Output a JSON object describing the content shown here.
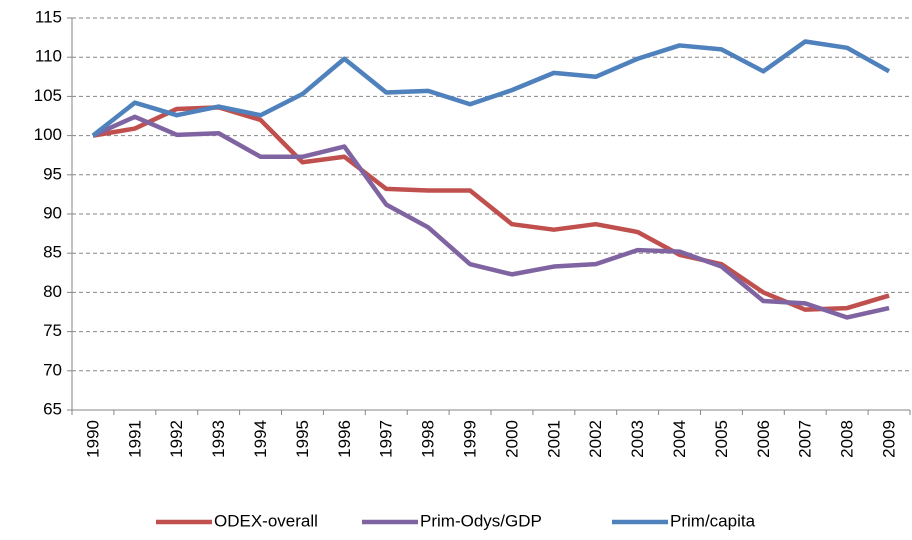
{
  "chart_data": {
    "type": "line",
    "categories": [
      "1990",
      "1991",
      "1992",
      "1993",
      "1994",
      "1995",
      "1996",
      "1997",
      "1998",
      "1999",
      "2000",
      "2001",
      "2002",
      "2003",
      "2004",
      "2005",
      "2006",
      "2007",
      "2008",
      "2009"
    ],
    "series": [
      {
        "name": "ODEX-overall",
        "color": "#c0504d",
        "values": [
          100,
          100.9,
          103.4,
          103.6,
          102.0,
          96.6,
          97.3,
          93.2,
          93.0,
          93.0,
          88.7,
          88.0,
          88.7,
          87.7,
          84.8,
          83.6,
          80.0,
          77.8,
          78.0,
          79.6
        ]
      },
      {
        "name": "Prim-Odys/GDP",
        "color": "#8064a2",
        "values": [
          100,
          102.4,
          100.1,
          100.3,
          97.3,
          97.3,
          98.6,
          91.2,
          88.3,
          83.6,
          82.3,
          83.3,
          83.6,
          85.4,
          85.2,
          83.3,
          78.9,
          78.6,
          76.8,
          78.0
        ]
      },
      {
        "name": "Prim/capita",
        "color": "#4f81bd",
        "values": [
          100,
          104.2,
          102.6,
          103.7,
          102.6,
          105.3,
          109.8,
          105.5,
          105.7,
          104.0,
          105.8,
          108.0,
          107.5,
          109.8,
          111.5,
          111.0,
          108.2,
          112.0,
          111.2,
          108.2
        ]
      }
    ],
    "ylim": [
      65,
      115
    ],
    "yticks": [
      65,
      70,
      75,
      80,
      85,
      90,
      95,
      100,
      105,
      110,
      115
    ],
    "grid": true,
    "legend": "bottom"
  }
}
